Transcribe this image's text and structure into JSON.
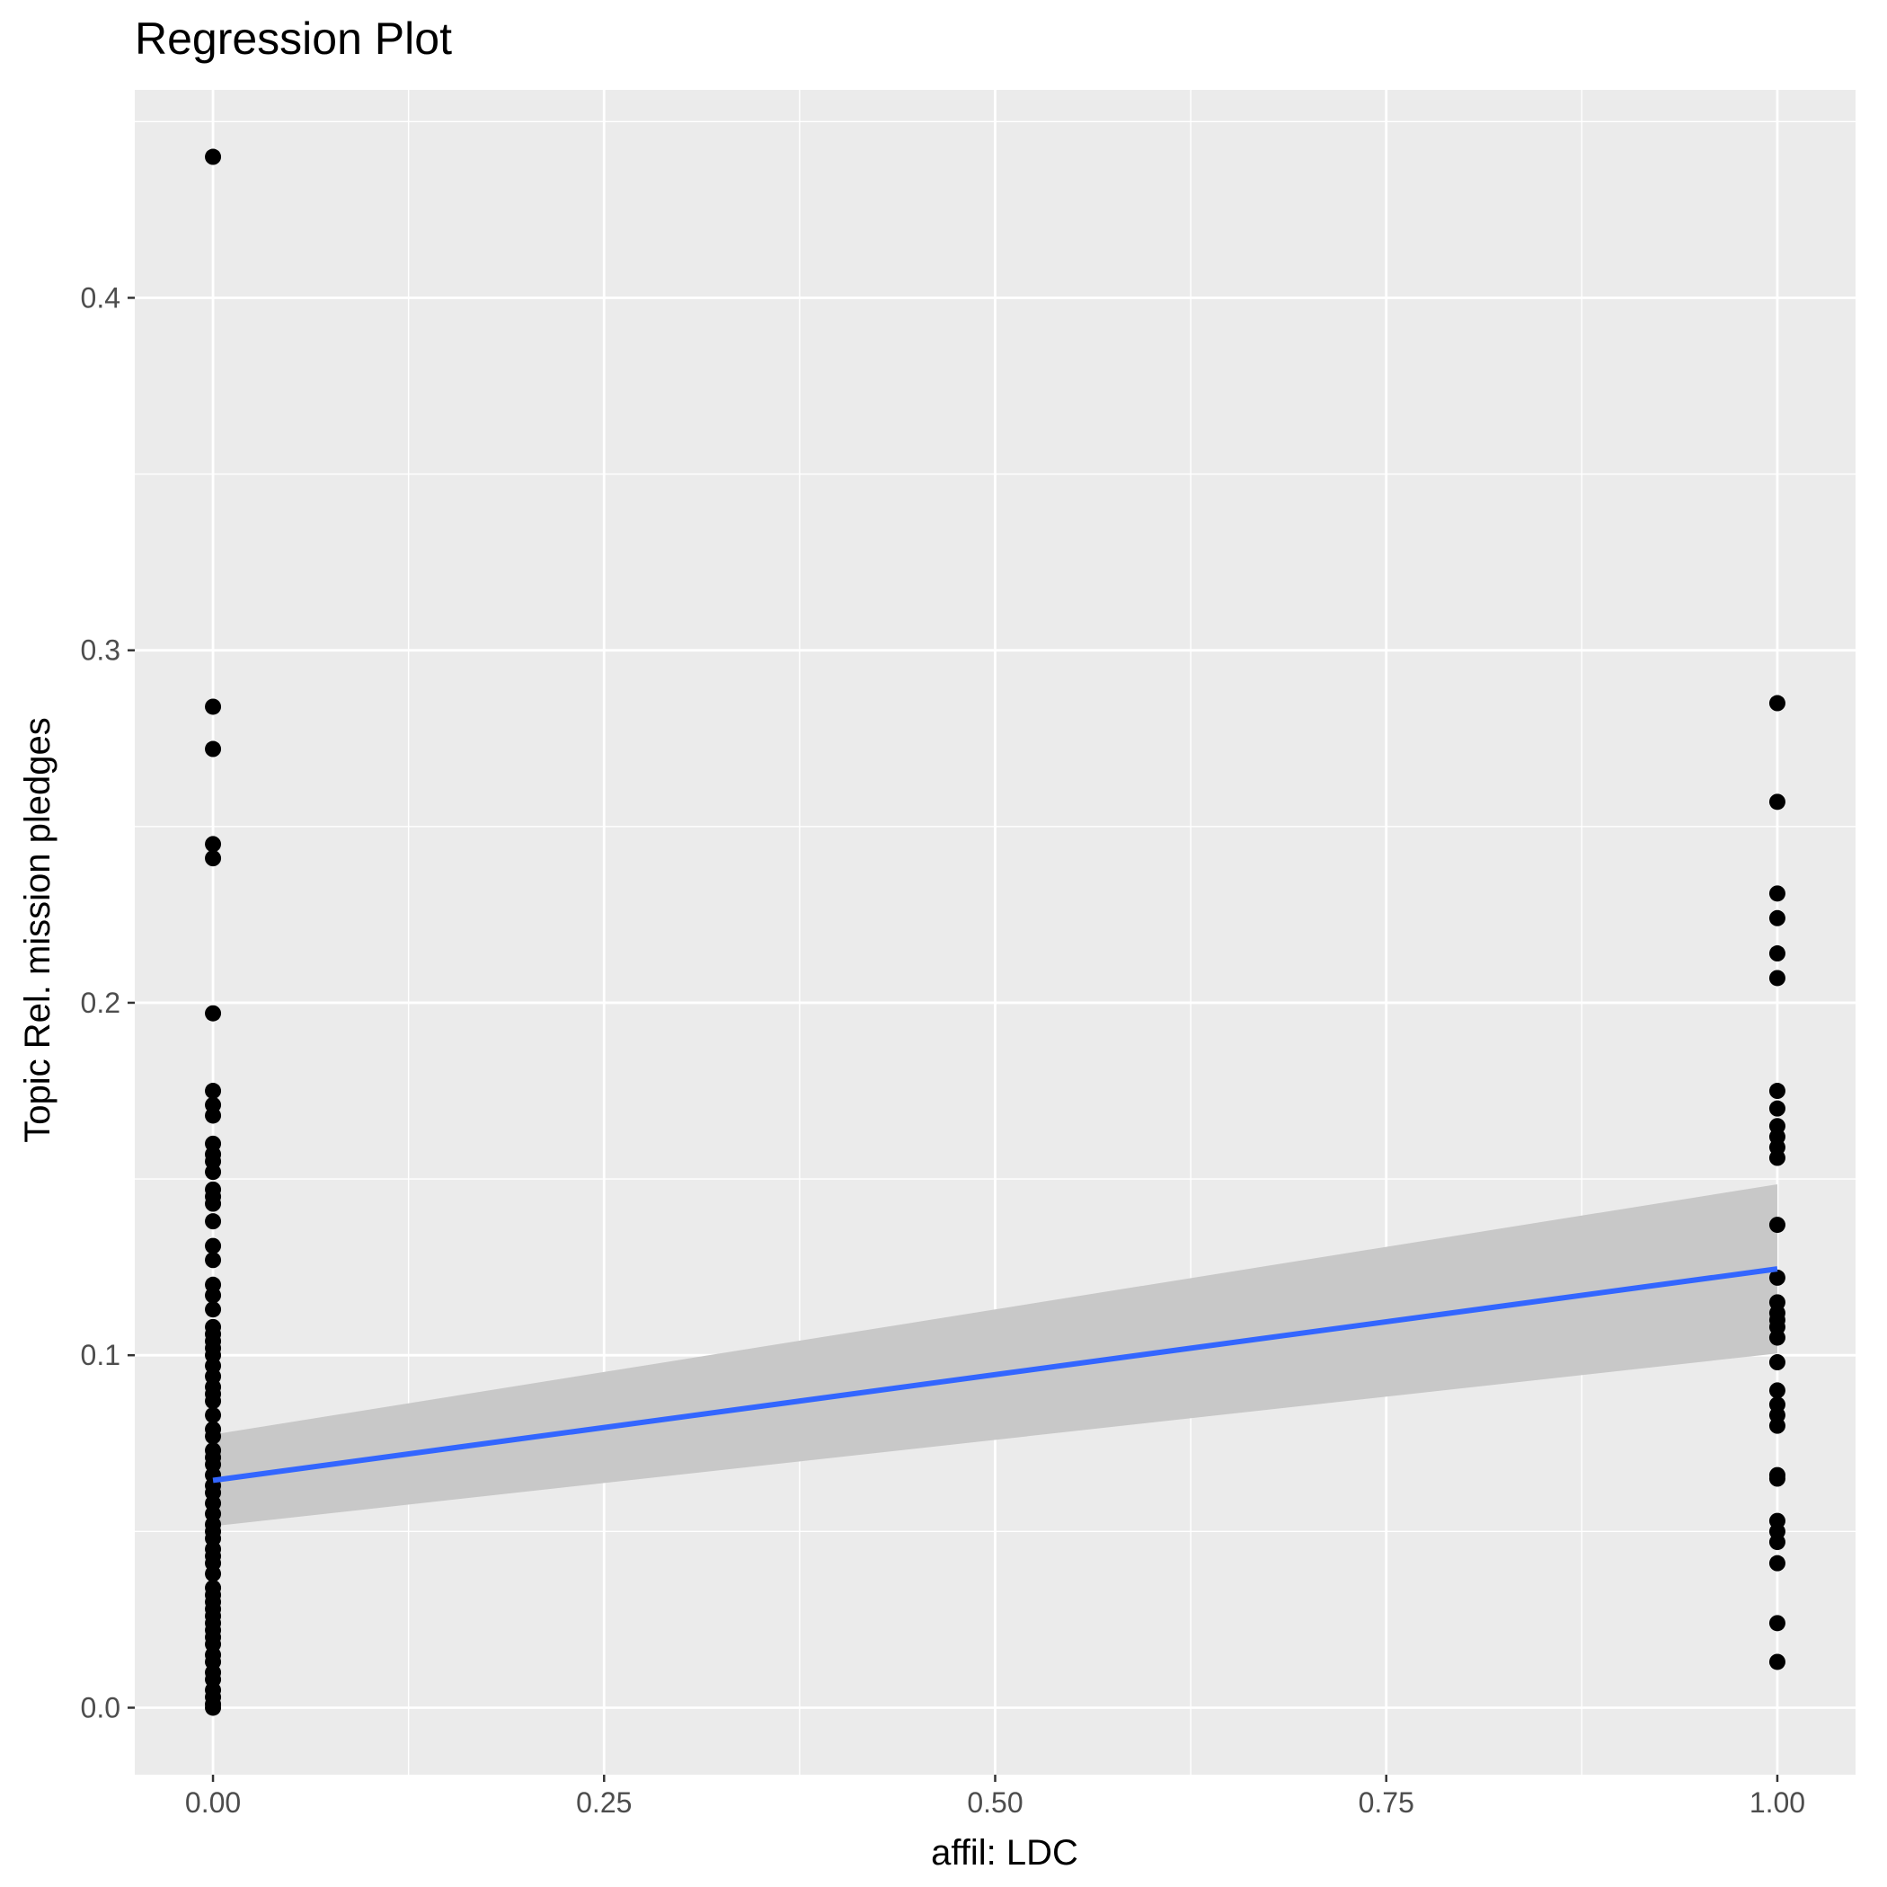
{
  "chart_data": {
    "type": "scatter",
    "title": "Regression Plot",
    "xlabel": "affil: LDC",
    "ylabel": "Topic Rel. mission pledges",
    "xlim": [
      -0.05,
      1.05
    ],
    "ylim": [
      -0.019,
      0.459
    ],
    "x_ticks": [
      0.0,
      0.25,
      0.5,
      0.75,
      1.0
    ],
    "x_tick_labels": [
      "0.00",
      "0.25",
      "0.50",
      "0.75",
      "1.00"
    ],
    "y_ticks": [
      0.0,
      0.1,
      0.2,
      0.3,
      0.4
    ],
    "y_tick_labels": [
      "0.0",
      "0.1",
      "0.2",
      "0.3",
      "0.4"
    ],
    "grid": true,
    "colors": {
      "panel_background": "#ebebeb",
      "grid_line": "#ffffff",
      "points": "#000000",
      "regression_line": "#3366ff",
      "confidence_band": "#c8c8c8"
    },
    "series": [
      {
        "x": 0,
        "values": [
          0.44,
          0.284,
          0.272,
          0.245,
          0.241,
          0.197,
          0.175,
          0.171,
          0.168,
          0.16,
          0.157,
          0.155,
          0.152,
          0.147,
          0.145,
          0.143,
          0.138,
          0.131,
          0.127,
          0.12,
          0.117,
          0.113,
          0.108,
          0.106,
          0.104,
          0.102,
          0.1,
          0.097,
          0.094,
          0.091,
          0.089,
          0.087,
          0.083,
          0.079,
          0.077,
          0.073,
          0.071,
          0.069,
          0.066,
          0.063,
          0.061,
          0.058,
          0.055,
          0.052,
          0.05,
          0.048,
          0.045,
          0.043,
          0.041,
          0.038,
          0.034,
          0.032,
          0.03,
          0.028,
          0.026,
          0.024,
          0.022,
          0.02,
          0.018,
          0.015,
          0.013,
          0.01,
          0.008,
          0.005,
          0.003,
          0.001,
          0.0
        ]
      },
      {
        "x": 1,
        "values": [
          0.285,
          0.257,
          0.231,
          0.224,
          0.214,
          0.207,
          0.175,
          0.17,
          0.165,
          0.162,
          0.159,
          0.156,
          0.137,
          0.122,
          0.115,
          0.112,
          0.11,
          0.108,
          0.105,
          0.098,
          0.09,
          0.086,
          0.083,
          0.08,
          0.066,
          0.065,
          0.053,
          0.05,
          0.047,
          0.041,
          0.024,
          0.013
        ]
      }
    ],
    "regression": {
      "x": [
        0,
        1
      ],
      "y": [
        0.0645,
        0.1245
      ],
      "ci_lower": [
        0.0515,
        0.1005
      ],
      "ci_upper": [
        0.0775,
        0.1485
      ]
    }
  }
}
